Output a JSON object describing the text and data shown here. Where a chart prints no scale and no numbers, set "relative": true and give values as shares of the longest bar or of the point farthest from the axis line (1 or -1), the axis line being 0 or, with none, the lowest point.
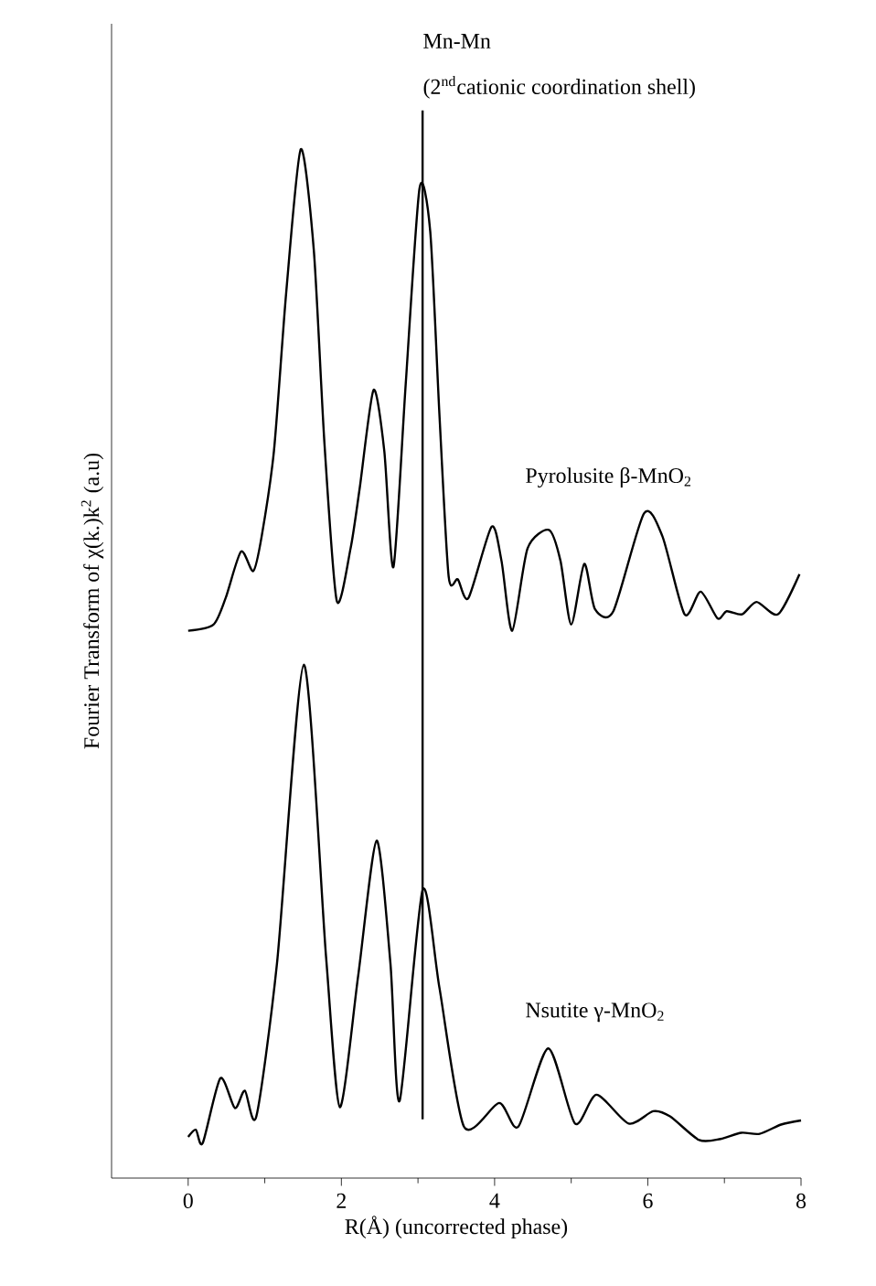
{
  "chart_data": {
    "type": "line",
    "xlabel": "R(Å) (uncorrected phase)",
    "ylabel": "Fourier Transform of χ(k.)k$^{2}$ (a.u)",
    "relative": true,
    "xlim": [
      -1,
      8
    ],
    "xticks": [
      0,
      2,
      4,
      6,
      8
    ],
    "tick_labels": "x",
    "grid": false,
    "marker": "none",
    "line_style": "solid",
    "ref_lines": [
      {
        "axis": "x",
        "value": 3.06,
        "label": "(2$^{nd}$cationic coordination shell)",
        "color": "#000000"
      }
    ],
    "annotations": [
      "Mn-Mn"
    ],
    "series": [
      {
        "name": "Pyrolusite β-MnO$_{2}$",
        "color": "#000000",
        "x": [
          0.0,
          0.33,
          0.49,
          0.69,
          0.85,
          0.96,
          1.12,
          1.28,
          1.47,
          1.64,
          1.78,
          1.94,
          2.12,
          2.24,
          2.42,
          2.56,
          2.68,
          2.84,
          3.02,
          3.16,
          3.28,
          3.4,
          3.52,
          3.66,
          3.96,
          4.09,
          4.23,
          4.43,
          4.71,
          4.86,
          5.0,
          5.17,
          5.31,
          5.55,
          5.95,
          6.19,
          6.48,
          6.69,
          6.91,
          7.03,
          7.23,
          7.42,
          7.7,
          7.98
        ],
        "values": [
          0.532,
          0.538,
          0.564,
          0.609,
          0.59,
          0.624,
          0.707,
          0.861,
          1.0,
          0.902,
          0.713,
          0.561,
          0.612,
          0.671,
          0.766,
          0.707,
          0.594,
          0.772,
          0.962,
          0.92,
          0.742,
          0.585,
          0.582,
          0.564,
          0.633,
          0.6,
          0.532,
          0.612,
          0.63,
          0.6,
          0.538,
          0.597,
          0.553,
          0.551,
          0.646,
          0.624,
          0.548,
          0.57,
          0.544,
          0.551,
          0.548,
          0.56,
          0.548,
          0.587
        ]
      },
      {
        "name": "Nsutite γ-MnO$_{2}$",
        "color": "#000000",
        "x": [
          0.0,
          0.1,
          0.19,
          0.42,
          0.61,
          0.74,
          0.89,
          1.16,
          1.51,
          1.8,
          1.98,
          2.22,
          2.46,
          2.64,
          2.76,
          3.06,
          3.28,
          3.6,
          4.06,
          4.31,
          4.7,
          5.05,
          5.33,
          5.75,
          6.07,
          6.29,
          6.67,
          6.95,
          7.22,
          7.46,
          7.74,
          8.0
        ],
        "values": [
          0.04,
          0.047,
          0.034,
          0.097,
          0.068,
          0.085,
          0.06,
          0.209,
          0.499,
          0.215,
          0.069,
          0.197,
          0.328,
          0.209,
          0.075,
          0.28,
          0.185,
          0.05,
          0.073,
          0.05,
          0.126,
          0.053,
          0.081,
          0.053,
          0.065,
          0.06,
          0.037,
          0.038,
          0.044,
          0.043,
          0.052,
          0.056
        ]
      }
    ]
  }
}
